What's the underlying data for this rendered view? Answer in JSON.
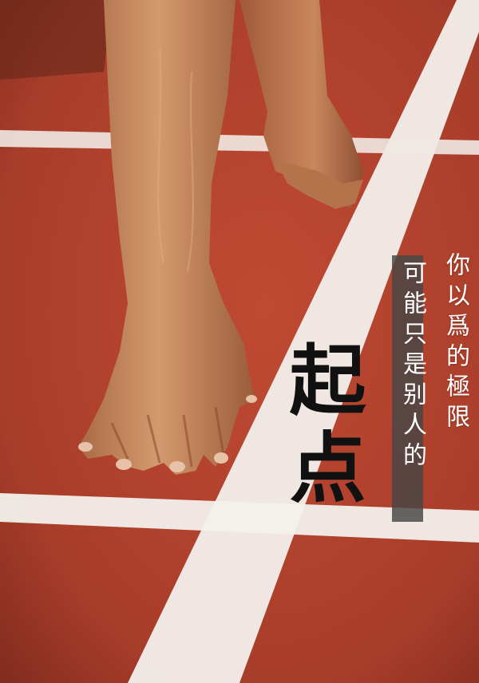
{
  "poster": {
    "tagline_line_1": "你以爲的極限",
    "tagline_line_2": "可能只是别人的",
    "headline": "起点"
  },
  "colors": {
    "track_red": "#b3432e",
    "lane_white": "#f3f0ec",
    "skin": "#c98a5e",
    "headline_black": "#111111",
    "tagline_box": "#464646"
  },
  "image": {
    "subject": "sprinter-hand-on-starting-line"
  }
}
